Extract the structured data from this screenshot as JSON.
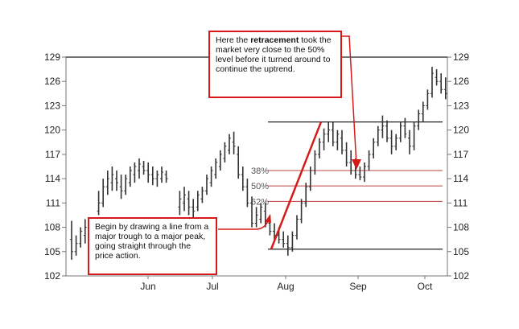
{
  "chart_data": {
    "type": "ohlc",
    "x_ticks": [
      "Jun",
      "Jul",
      "Aug",
      "Sep",
      "Oct"
    ],
    "ylim": [
      102,
      129
    ],
    "y_ticks": [
      102,
      105,
      108,
      111,
      114,
      117,
      120,
      123,
      126,
      129
    ],
    "trendline": {
      "from": 105.3,
      "to": 121.0
    },
    "fib_levels": [
      {
        "label": "38%",
        "value": 115.0
      },
      {
        "label": "50%",
        "value": 113.1
      },
      {
        "label": "62%",
        "value": 111.2
      }
    ],
    "reference_lines": [
      129,
      121,
      105.3
    ],
    "colors": {
      "bars": "#333333",
      "accent": "#d61a1a",
      "fib": "#c04040"
    },
    "series": [
      {
        "values": [
          [
            106.5,
            108.8,
            104,
            105
          ],
          [
            105,
            107,
            104.5,
            106
          ],
          [
            106,
            108,
            105.5,
            107.5
          ],
          [
            107,
            109,
            106,
            108
          ],
          [
            null,
            null,
            null,
            null
          ],
          [
            null,
            null,
            null,
            null
          ],
          [
            110,
            112.5,
            109.5,
            111
          ],
          [
            111,
            114,
            110.5,
            113
          ],
          [
            113,
            115,
            112,
            114
          ],
          [
            113.5,
            115.5,
            112.5,
            114.5
          ],
          [
            114,
            115,
            112.5,
            113.5
          ],
          [
            113,
            114.5,
            111.5,
            112.5
          ],
          [
            112.5,
            114.5,
            112,
            114
          ],
          [
            113.5,
            115.5,
            113,
            115
          ],
          [
            114.5,
            116,
            113.5,
            115.5
          ],
          [
            115,
            116.5,
            114,
            115.8
          ],
          [
            115.5,
            116.2,
            114.5,
            115
          ],
          [
            115,
            116,
            113.5,
            114.5
          ],
          [
            114.5,
            115.5,
            113.2,
            114
          ],
          [
            114,
            115,
            113,
            114.5
          ],
          [
            114,
            115.5,
            113.5,
            114.8
          ],
          [
            114.5,
            115,
            113.5,
            114
          ],
          [
            null,
            null,
            null,
            null
          ],
          [
            null,
            null,
            null,
            null
          ],
          [
            110.5,
            112.5,
            109.5,
            111.5
          ],
          [
            111,
            113,
            110,
            112
          ],
          [
            111.5,
            112.5,
            109.5,
            110.5
          ],
          [
            110.5,
            111.5,
            109,
            110
          ],
          [
            110.5,
            112.5,
            110,
            112
          ],
          [
            111.5,
            113,
            111,
            112.5
          ],
          [
            112.5,
            114.5,
            112,
            114
          ],
          [
            113.5,
            115.5,
            113,
            115
          ],
          [
            114.5,
            116.5,
            114,
            116
          ],
          [
            115.5,
            117.5,
            115,
            117
          ],
          [
            116.5,
            118.5,
            116,
            118
          ],
          [
            117.5,
            119.5,
            117,
            119
          ],
          [
            118.5,
            119.8,
            117,
            118
          ],
          [
            117,
            118,
            114,
            114.5
          ],
          [
            114.5,
            115.5,
            112.5,
            113
          ],
          [
            113,
            114,
            110.5,
            111
          ],
          [
            111,
            111.8,
            108,
            108.5
          ],
          [
            108.5,
            110.5,
            108,
            109.5
          ],
          [
            109,
            111,
            108.5,
            110.5
          ],
          [
            110,
            111,
            108,
            108.5
          ],
          [
            108.5,
            109.5,
            107,
            107.5
          ],
          [
            107.5,
            108.5,
            106.5,
            107
          ],
          [
            107,
            108,
            106,
            106.5
          ],
          [
            106.5,
            107.5,
            105.5,
            106
          ],
          [
            106,
            107,
            104.5,
            105.5
          ],
          [
            105.5,
            107.5,
            105,
            107
          ],
          [
            107,
            109.5,
            106.5,
            109
          ],
          [
            109,
            111.5,
            108.5,
            111
          ],
          [
            111,
            113.5,
            110.5,
            113
          ],
          [
            113,
            115.5,
            112.5,
            115
          ],
          [
            115,
            117.5,
            114.5,
            117
          ],
          [
            117,
            119,
            116.5,
            118.5
          ],
          [
            118.5,
            120.2,
            117.5,
            119.5
          ],
          [
            119.5,
            121,
            118.5,
            120
          ],
          [
            120,
            121,
            118,
            118.5
          ],
          [
            118.5,
            120,
            117.5,
            119.5
          ],
          [
            119,
            120,
            117,
            117.5
          ],
          [
            117.5,
            118.5,
            115.5,
            116
          ],
          [
            116,
            117.5,
            114.5,
            115
          ],
          [
            115,
            116.5,
            114,
            114.5
          ],
          [
            114.5,
            115.5,
            113.8,
            114.2
          ],
          [
            114.2,
            116,
            113.6,
            115.5
          ],
          [
            115.5,
            117.5,
            115,
            117
          ],
          [
            117,
            119,
            116.5,
            118.5
          ],
          [
            118.5,
            120.5,
            118,
            120
          ],
          [
            120,
            121.8,
            119,
            120.5
          ],
          [
            120.5,
            121.2,
            118.5,
            119
          ],
          [
            119,
            120,
            117,
            118
          ],
          [
            118,
            119.5,
            117.5,
            119
          ],
          [
            119,
            121,
            118.5,
            120.5
          ],
          [
            120.5,
            121.5,
            119,
            119.5
          ],
          [
            119,
            120,
            117,
            118
          ],
          [
            118,
            121,
            117.5,
            120.5
          ],
          [
            120.5,
            122.5,
            120,
            122
          ],
          [
            122,
            123.5,
            121,
            123
          ],
          [
            123,
            125,
            122.5,
            124.5
          ],
          [
            124.5,
            127.8,
            124,
            127
          ],
          [
            126.5,
            127.5,
            125.5,
            126
          ],
          [
            126,
            127,
            124.5,
            125
          ],
          [
            125,
            126.5,
            123.8,
            124.5
          ]
        ]
      }
    ]
  },
  "annotations": {
    "top": {
      "pre": "Here the ",
      "bold": "retracement",
      "post": " took the market very close to the 50% level before it turned around to continue the uptrend."
    },
    "bottom": {
      "text": "Begin by drawing a line from a major trough to a major peak, going straight through the price action."
    }
  }
}
